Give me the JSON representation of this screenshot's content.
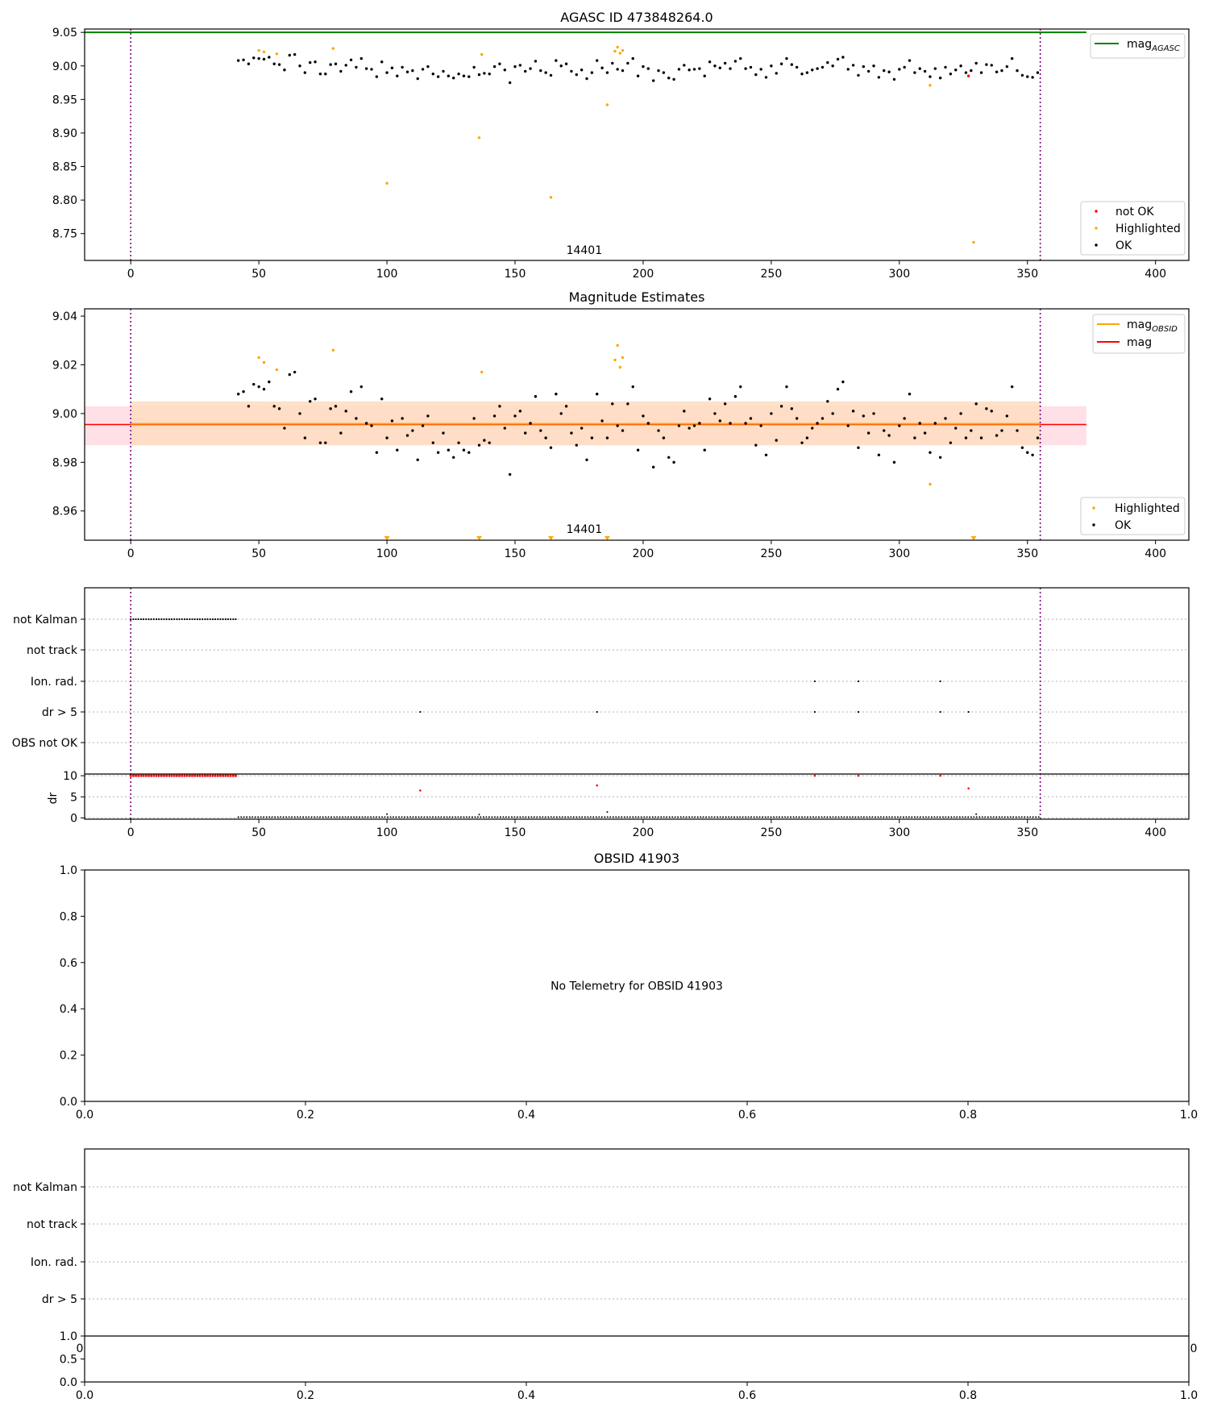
{
  "colors": {
    "ok": "#000000",
    "highlighted": "#ffa500",
    "not_ok": "#ff0000",
    "agasc": "#008000",
    "obsid_line": "#ffa500",
    "mag_line": "#ff0000",
    "vline": "#800080",
    "band_obsid": "#ffdcc0",
    "band_mag": "#ffe0e6"
  },
  "chart_data": [
    {
      "type": "scatter",
      "title": "AGASC ID 473848264.0",
      "ylim": [
        8.71,
        9.055
      ],
      "xlim": [
        -18,
        413
      ],
      "yticks": [
        "8.75",
        "8.80",
        "8.85",
        "8.90",
        "8.95",
        "9.00",
        "9.05"
      ],
      "xticks": [
        "0",
        "50",
        "100",
        "150",
        "200",
        "250",
        "300",
        "350",
        "400"
      ],
      "mag_agasc": 9.05,
      "obsid_bounds": [
        0,
        355
      ],
      "obsid_label": "14401",
      "legend_line": {
        "label": "mag",
        "sub": "AGASC",
        "placement": "top-right"
      },
      "legend_points": {
        "placement": "lower-right",
        "entries": [
          "not OK",
          "Highlighted",
          "OK"
        ]
      },
      "ok_series": {
        "x_start": 42,
        "x_step": 2,
        "values": [
          9.008,
          9.009,
          9.003,
          9.012,
          9.011,
          9.01,
          9.013,
          9.003,
          9.002,
          8.994,
          9.016,
          9.017,
          9.0,
          8.99,
          9.005,
          9.006,
          8.988,
          8.988,
          9.002,
          9.003,
          8.992,
          9.001,
          9.009,
          8.998,
          9.011,
          8.996,
          8.995,
          8.984,
          9.006,
          8.99,
          8.997,
          8.985,
          8.998,
          8.991,
          8.993,
          8.981,
          8.995,
          8.999,
          8.988,
          8.984,
          8.992,
          8.985,
          8.982,
          8.988,
          8.985,
          8.984,
          8.998,
          8.987,
          8.989,
          8.988,
          8.999,
          9.003,
          8.994,
          8.975,
          8.999,
          9.001,
          8.992,
          8.996,
          9.007,
          8.993,
          8.99,
          8.986,
          9.008,
          9.0,
          9.003,
          8.992,
          8.987,
          8.994,
          8.981,
          8.99,
          9.008,
          8.997,
          8.99,
          9.004,
          8.995,
          8.993,
          9.004,
          9.011,
          8.985,
          8.999,
          8.996,
          8.978,
          8.993,
          8.99,
          8.982,
          8.98,
          8.995,
          9.001,
          8.994,
          8.995,
          8.996,
          8.985,
          9.006,
          9.0,
          8.997,
          9.004,
          8.996,
          9.007,
          9.011,
          8.996,
          8.998,
          8.987,
          8.995,
          8.983,
          9.0,
          8.989,
          9.003,
          9.011,
          9.002,
          8.998,
          8.988,
          8.99,
          8.994,
          8.996,
          8.998,
          9.005,
          9.0,
          9.01,
          9.013,
          8.995,
          9.001,
          8.986,
          8.999,
          8.992,
          9.0,
          8.983,
          8.993,
          8.991,
          8.98,
          8.995,
          8.998,
          9.008,
          8.99,
          8.996,
          8.992,
          8.984,
          8.996,
          8.982,
          8.998,
          8.988,
          8.994,
          9.0,
          8.99,
          8.993,
          9.004,
          8.99,
          9.002,
          9.001,
          8.991,
          8.993,
          8.999,
          9.011,
          8.993,
          8.986,
          8.984,
          8.983,
          8.99
        ]
      },
      "highlighted": [
        [
          50,
          9.023
        ],
        [
          52,
          9.021
        ],
        [
          57,
          9.018
        ],
        [
          79,
          9.026
        ],
        [
          100,
          8.825
        ],
        [
          136,
          8.893
        ],
        [
          137,
          9.017
        ],
        [
          164,
          8.804
        ],
        [
          186,
          8.942
        ],
        [
          189,
          9.022
        ],
        [
          190,
          9.028
        ],
        [
          191,
          9.019
        ],
        [
          192,
          9.023
        ],
        [
          312,
          8.971
        ],
        [
          329,
          8.737
        ]
      ],
      "not_ok": [
        [
          327,
          8.985
        ]
      ]
    },
    {
      "type": "scatter",
      "title": "Magnitude Estimates",
      "ylim": [
        8.948,
        9.043
      ],
      "yticks": [
        "8.96",
        "8.98",
        "9.00",
        "9.02",
        "9.04"
      ],
      "xticks": [
        "0",
        "50",
        "100",
        "150",
        "200",
        "250",
        "300",
        "350",
        "400"
      ],
      "mag_obsid": 8.9958,
      "mag_obsid_band": [
        8.987,
        9.005
      ],
      "mag_obsid_range": [
        0,
        355
      ],
      "mag": 8.9955,
      "mag_band": [
        8.987,
        9.003
      ],
      "mag_range": [
        -18,
        373
      ],
      "obsid_label": "14401",
      "below_range_markers": [
        100,
        136,
        164,
        186,
        329
      ],
      "legend_lines": [
        {
          "label": "mag",
          "sub": "OBSID"
        },
        {
          "label": "mag",
          "sub": ""
        }
      ],
      "legend_points": [
        "Highlighted",
        "OK"
      ]
    },
    {
      "type": "scatter",
      "flag_labels": [
        "not Kalman",
        "not track",
        "Ion. rad.",
        "dr > 5",
        "OBS not OK"
      ],
      "flags": {
        "not Kalman": {
          "x_start": 0,
          "x_end": 41,
          "x_step": 1
        },
        "Ion. rad.": [
          267,
          284,
          316
        ],
        "dr > 5": [
          113,
          182,
          267,
          284,
          316,
          327
        ]
      },
      "dr_label": "dr",
      "dr_yticks": [
        "0",
        "5",
        "10"
      ],
      "dr_ylim": [
        -0.3,
        10.4
      ],
      "dr_baseline": 0.2,
      "dr_red": [
        [
          113,
          6.5
        ],
        [
          182,
          7.7
        ],
        [
          267,
          10
        ],
        [
          284,
          10
        ],
        [
          316,
          10
        ],
        [
          327,
          7.0
        ]
      ],
      "dr_clip_range": [
        0,
        41
      ],
      "dr_ok_bumps": [
        [
          100,
          0.9
        ],
        [
          136,
          0.8
        ],
        [
          186,
          1.4
        ],
        [
          330,
          0.9
        ]
      ],
      "xticks": [
        "0",
        "50",
        "100",
        "150",
        "200",
        "250",
        "300",
        "350",
        "400"
      ]
    },
    {
      "type": "scatter",
      "title": "OBSID 41903",
      "message": "No Telemetry for OBSID 41903",
      "yticks": [
        "0.0",
        "0.2",
        "0.4",
        "0.6",
        "0.8",
        "1.0"
      ],
      "xticks": [
        "0.0",
        "0.2",
        "0.4",
        "0.6",
        "0.8",
        "1.0"
      ]
    },
    {
      "type": "scatter",
      "flag_labels": [
        "not Kalman",
        "not track",
        "Ion. rad.",
        "dr > 5"
      ],
      "upper_xticks": [
        "0",
        "0"
      ],
      "yticks": [
        "0.0",
        "0.5",
        "1.0"
      ],
      "xticks": [
        "0.0",
        "0.2",
        "0.4",
        "0.6",
        "0.8",
        "1.0"
      ]
    }
  ]
}
